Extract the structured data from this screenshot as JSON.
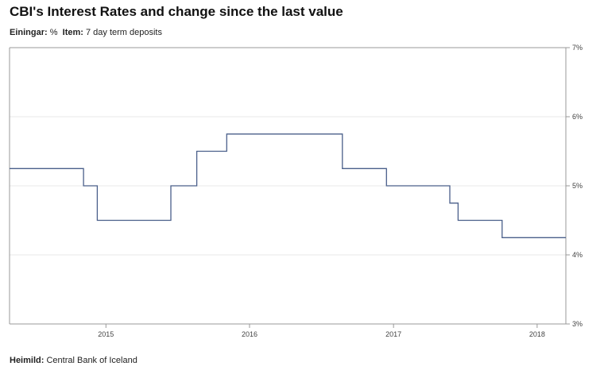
{
  "title": "CBI's Interest Rates and change since the last value",
  "subtitle": {
    "unit_label": "Einingar:",
    "unit_value": "%",
    "item_label": "Item:",
    "item_value": "7 day term deposits"
  },
  "source": {
    "label": "Heimild:",
    "value": "Central Bank of Iceland"
  },
  "colors": {
    "line": "#4a5f8a",
    "axis": "#999999",
    "grid": "#e8e8e8"
  },
  "chart_data": {
    "type": "line",
    "step": true,
    "x_type": "date",
    "xlim": [
      "2014-05-01",
      "2018-03-15"
    ],
    "ylim": [
      3,
      7
    ],
    "y_ticks": [
      {
        "value": 3,
        "label": "3%"
      },
      {
        "value": 4,
        "label": "4%"
      },
      {
        "value": 5,
        "label": "5%"
      },
      {
        "value": 6,
        "label": "6%"
      },
      {
        "value": 7,
        "label": "7%"
      }
    ],
    "x_ticks": [
      {
        "value": "2015-01-01",
        "label": "2015"
      },
      {
        "value": "2016-01-01",
        "label": "2016"
      },
      {
        "value": "2017-01-01",
        "label": "2017"
      },
      {
        "value": "2018-01-01",
        "label": "2018"
      }
    ],
    "y_axis_position": "right",
    "grid": true,
    "series": [
      {
        "points": [
          {
            "x": "2014-05-01",
            "y": 5.25
          },
          {
            "x": "2014-11-05",
            "y": 5.0
          },
          {
            "x": "2014-12-10",
            "y": 4.5
          },
          {
            "x": "2015-06-15",
            "y": 5.0
          },
          {
            "x": "2015-08-20",
            "y": 5.5
          },
          {
            "x": "2015-11-04",
            "y": 5.75
          },
          {
            "x": "2016-08-24",
            "y": 5.25
          },
          {
            "x": "2016-12-14",
            "y": 5.0
          },
          {
            "x": "2017-05-24",
            "y": 4.75
          },
          {
            "x": "2017-06-14",
            "y": 4.5
          },
          {
            "x": "2017-10-04",
            "y": 4.25
          },
          {
            "x": "2018-03-15",
            "y": 4.25
          }
        ]
      }
    ]
  }
}
